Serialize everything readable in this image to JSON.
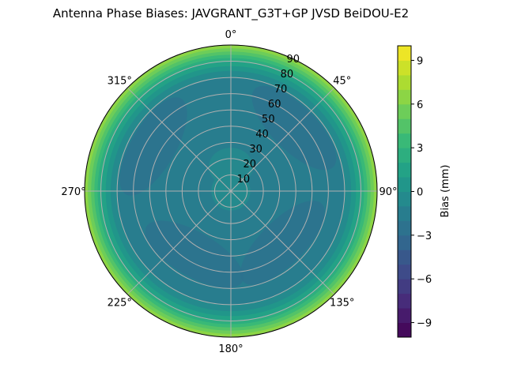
{
  "chart_data": {
    "type": "polar-contour",
    "title": "Antenna Phase Biases: JAVGRANT_G3T+GP JVSD BeiDOU-E2",
    "angle_ticks": [
      "0°",
      "45°",
      "90°",
      "135°",
      "180°",
      "225°",
      "270°",
      "315°"
    ],
    "radial_ticks": [
      "10",
      "20",
      "30",
      "40",
      "50",
      "60",
      "70",
      "80",
      "90"
    ],
    "radial_range": [
      0,
      90
    ],
    "grid": true,
    "colormap": "viridis",
    "colorbar": {
      "label": "Bias (mm)",
      "range": [
        -10,
        10
      ],
      "levels": 20,
      "ticks": [
        "9",
        "6",
        "3",
        "0",
        "−3",
        "−6",
        "−9"
      ],
      "tick_values": [
        9,
        6,
        3,
        0,
        -3,
        -6,
        -9
      ]
    },
    "radial_profile": {
      "zenith": [
        90,
        88,
        86,
        84,
        82,
        80,
        77,
        74,
        70,
        12,
        8
      ],
      "bias": [
        6.5,
        5.5,
        4.5,
        3.5,
        2.5,
        1.5,
        0.5,
        -0.5,
        -1.5,
        -0.5,
        -0.5
      ]
    },
    "regions": [
      {
        "azimuth": 300,
        "zenith": 55,
        "bias": -2.5
      },
      {
        "azimuth": 135,
        "zenith": 45,
        "bias": -2.5
      },
      {
        "azimuth": 45,
        "zenith": 55,
        "bias": -2.5
      },
      {
        "azimuth": 210,
        "zenith": 45,
        "bias": -2.5
      },
      {
        "azimuth": 0,
        "zenith": 15,
        "bias": -0.5
      }
    ]
  }
}
